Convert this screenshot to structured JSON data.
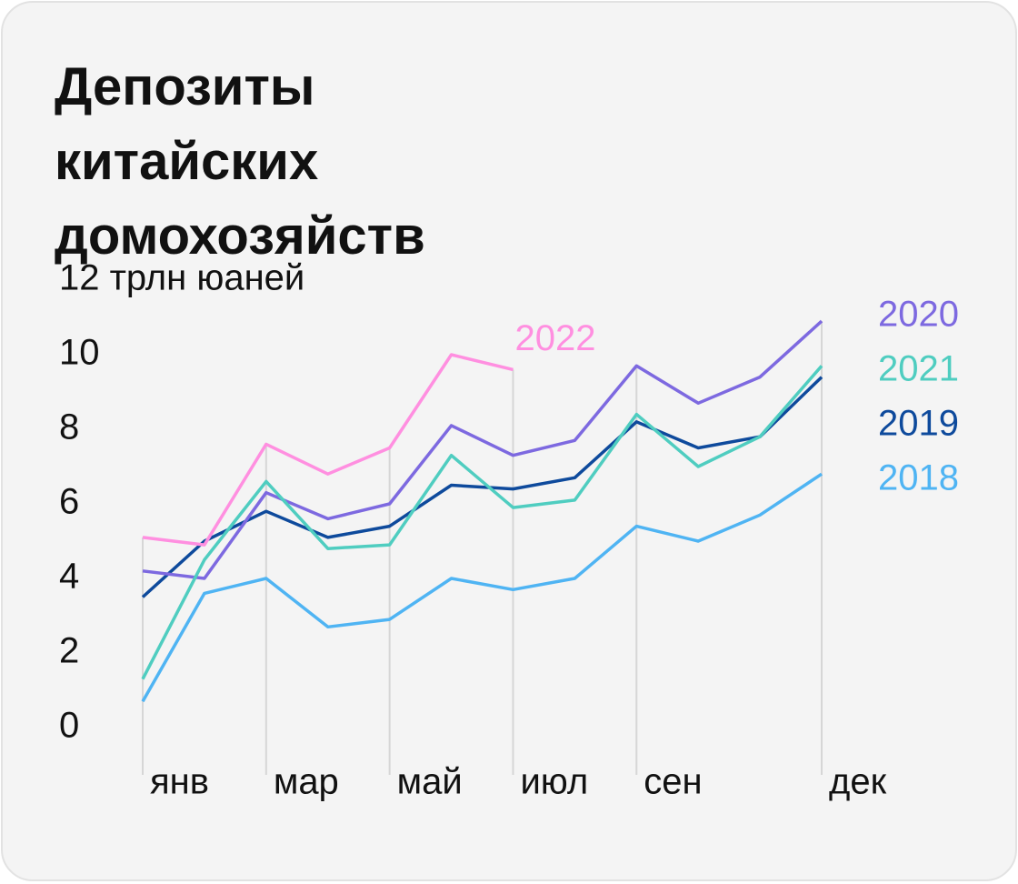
{
  "chart_data": {
    "type": "line",
    "title": "Депозиты китайских домохозяйств",
    "categories": [
      "янв",
      null,
      "мар",
      null,
      "май",
      null,
      "июл",
      null,
      "сен",
      null,
      null,
      "дек"
    ],
    "series": [
      {
        "name": "2018",
        "color": "#4fb4f3",
        "values": [
          0.7,
          3.6,
          4.0,
          2.7,
          2.9,
          4.0,
          3.7,
          4.0,
          5.4,
          5.0,
          5.7,
          6.8
        ]
      },
      {
        "name": "2019",
        "color": "#0e4a9c",
        "values": [
          3.5,
          5.0,
          5.8,
          5.1,
          5.4,
          6.5,
          6.4,
          6.7,
          8.2,
          7.5,
          7.8,
          9.4
        ]
      },
      {
        "name": "2020",
        "color": "#7d69e0",
        "values": [
          4.2,
          4.0,
          6.3,
          5.6,
          6.0,
          8.1,
          7.3,
          7.7,
          9.7,
          8.7,
          9.4,
          10.9
        ]
      },
      {
        "name": "2021",
        "color": "#4fcdc0",
        "values": [
          1.3,
          4.5,
          6.6,
          4.8,
          4.9,
          7.3,
          5.9,
          6.1,
          8.4,
          7.0,
          7.8,
          9.7
        ]
      },
      {
        "name": "2022",
        "color": "#ff8fe0",
        "values": [
          5.1,
          4.9,
          7.6,
          6.8,
          7.5,
          10.0,
          9.6,
          null,
          null,
          null,
          null,
          null
        ]
      }
    ],
    "ylim": [
      0,
      12
    ],
    "yticks": [
      0,
      2,
      4,
      6,
      8,
      10,
      {
        "value": 12,
        "label": "12 трлн юаней"
      }
    ],
    "grid": true
  }
}
